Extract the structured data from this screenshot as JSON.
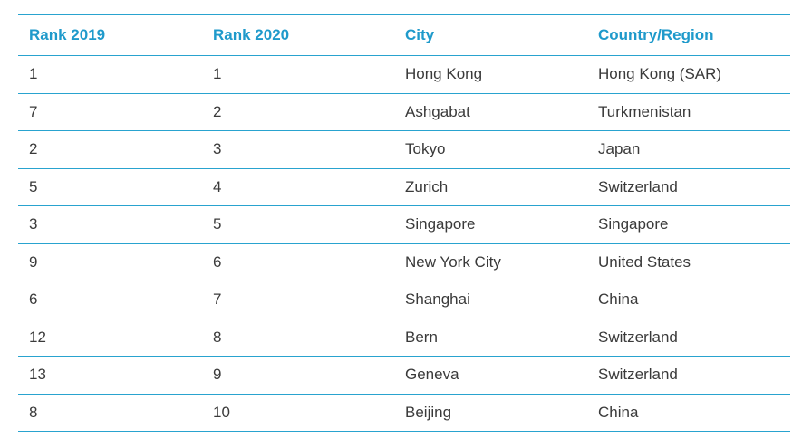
{
  "table": {
    "headers": [
      "Rank 2019",
      "Rank 2020",
      "City",
      "Country/Region"
    ],
    "rows": [
      [
        "1",
        "1",
        "Hong Kong",
        "Hong Kong (SAR)"
      ],
      [
        "7",
        "2",
        "Ashgabat",
        "Turkmenistan"
      ],
      [
        "2",
        "3",
        "Tokyo",
        "Japan"
      ],
      [
        "5",
        "4",
        "Zurich",
        "Switzerland"
      ],
      [
        "3",
        "5",
        "Singapore",
        "Singapore"
      ],
      [
        "9",
        "6",
        "New York City",
        "United States"
      ],
      [
        "6",
        "7",
        "Shanghai",
        "China"
      ],
      [
        "12",
        "8",
        "Bern",
        "Switzerland"
      ],
      [
        "13",
        "9",
        "Geneva",
        "Switzerland"
      ],
      [
        "8",
        "10",
        "Beijing",
        "China"
      ]
    ]
  },
  "colors": {
    "accent": "#1f9acb",
    "rule": "#29a3cf",
    "text": "#3a3a3a"
  }
}
